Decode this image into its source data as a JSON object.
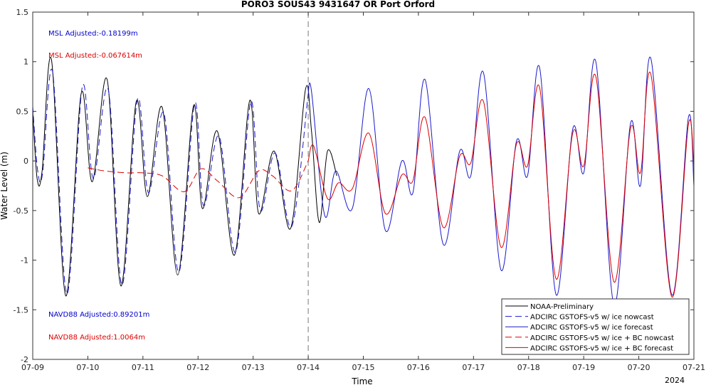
{
  "chart_data": {
    "type": "line",
    "title": "PORO3 SOUS43 9431647 OR Port Orford",
    "xlabel": "Time",
    "ylabel": "Water Level (m)",
    "xlim": [
      9,
      21
    ],
    "ylim": [
      -2,
      1.5
    ],
    "grid": false,
    "x_ticks": [
      {
        "v": 9,
        "label": "07-09"
      },
      {
        "v": 10,
        "label": "07-10"
      },
      {
        "v": 11,
        "label": "07-11"
      },
      {
        "v": 12,
        "label": "07-12"
      },
      {
        "v": 13,
        "label": "07-13"
      },
      {
        "v": 14,
        "label": "07-14"
      },
      {
        "v": 15,
        "label": "07-15"
      },
      {
        "v": 16,
        "label": "07-16"
      },
      {
        "v": 17,
        "label": "07-17"
      },
      {
        "v": 18,
        "label": "07-18"
      },
      {
        "v": 19,
        "label": "07-19"
      },
      {
        "v": 20,
        "label": "07-20"
      },
      {
        "v": 21,
        "label": "07-21"
      }
    ],
    "x_year_label": "2024",
    "y_ticks": [
      {
        "v": 1.5,
        "label": "1.5"
      },
      {
        "v": 1,
        "label": "1"
      },
      {
        "v": 0.5,
        "label": "0.5"
      },
      {
        "v": 0,
        "label": "0"
      },
      {
        "v": -0.5,
        "label": "-0.5"
      },
      {
        "v": -1,
        "label": "-1"
      },
      {
        "v": -1.5,
        "label": "-1.5"
      },
      {
        "v": -2,
        "label": "-2"
      }
    ],
    "nowcast_forecast_divider_x": 14,
    "annotations": [
      {
        "text": "MSL Adjusted:-0.18199m",
        "color": "#0000cc"
      },
      {
        "text": "MSL Adjusted:-0.067614m",
        "color": "#dd0000"
      },
      {
        "text": "NAVD88 Adjusted:0.89201m",
        "color": "#0000cc"
      },
      {
        "text": "NAVD88 Adjusted:1.0064m",
        "color": "#dd0000"
      }
    ],
    "legend_position": "bottom-right",
    "series": [
      {
        "name": "NOAA-Preliminary",
        "color": "#000000",
        "dash": "solid",
        "x": [
          9.0,
          9.08,
          9.17,
          9.34,
          9.6,
          9.88,
          10.08,
          10.35,
          10.6,
          10.88,
          11.08,
          11.35,
          11.63,
          11.92,
          12.08,
          12.35,
          12.66,
          12.94,
          13.1,
          13.38,
          13.68,
          13.95,
          14.06,
          14.2,
          14.35,
          14.52
        ],
        "y": [
          0.5,
          -0.18,
          -0.1,
          1.02,
          -1.36,
          0.68,
          -0.21,
          0.82,
          -1.26,
          0.6,
          -0.36,
          0.54,
          -1.15,
          0.56,
          -0.48,
          0.3,
          -0.95,
          0.61,
          -0.53,
          0.1,
          -0.68,
          0.72,
          0.3,
          -0.62,
          0.1,
          -0.15
        ]
      },
      {
        "name": "ADCIRC GSTOFS-v5 w/ ice nowcast",
        "color": "#1a1acc",
        "dash": "dashed",
        "x": [
          9.0,
          9.09,
          9.18,
          9.36,
          9.62,
          9.9,
          10.1,
          10.37,
          10.62,
          10.9,
          11.1,
          11.38,
          11.65,
          11.94,
          12.1,
          12.38,
          12.68,
          12.96,
          13.13,
          13.4,
          13.7,
          14.0
        ],
        "y": [
          0.55,
          -0.1,
          -0.12,
          0.9,
          -1.34,
          0.75,
          -0.18,
          0.72,
          -1.25,
          0.62,
          -0.32,
          0.48,
          -1.12,
          0.58,
          -0.45,
          0.25,
          -0.92,
          0.6,
          -0.5,
          0.08,
          -0.66,
          0.68
        ]
      },
      {
        "name": "ADCIRC GSTOFS-v5 w/ ice forecast",
        "color": "#1a1acc",
        "dash": "solid",
        "x": [
          14.0,
          14.06,
          14.3,
          14.5,
          14.8,
          15.1,
          15.4,
          15.7,
          15.9,
          16.12,
          16.45,
          16.75,
          16.95,
          17.18,
          17.5,
          17.78,
          17.98,
          18.2,
          18.5,
          18.8,
          19.0,
          19.22,
          19.55,
          19.85,
          20.03,
          20.22,
          20.6,
          20.9,
          21.0
        ],
        "y": [
          0.68,
          0.7,
          -0.55,
          -0.1,
          -0.48,
          0.73,
          -0.7,
          0.0,
          -0.32,
          0.82,
          -0.84,
          0.1,
          -0.15,
          0.89,
          -1.1,
          0.2,
          -0.15,
          0.94,
          -1.35,
          0.32,
          -0.12,
          1.0,
          -1.45,
          0.38,
          -0.25,
          1.03,
          -1.35,
          0.44,
          -0.25
        ]
      },
      {
        "name": "ADCIRC GSTOFS-v5 w/ ice + BC nowcast",
        "color": "#dd0000",
        "dash": "dashed",
        "x": [
          10.0,
          10.3,
          10.7,
          11.0,
          11.35,
          11.75,
          12.05,
          12.35,
          12.75,
          13.1,
          13.35,
          13.7,
          14.0
        ],
        "y": [
          -0.07,
          -0.1,
          -0.12,
          -0.12,
          -0.15,
          -0.31,
          -0.08,
          -0.2,
          -0.37,
          -0.1,
          -0.15,
          -0.3,
          0.0
        ]
      },
      {
        "name": "ADCIRC GSTOFS-v5 w/ ice + BC forecast",
        "color": "#dd0000",
        "dash": "solid",
        "x": [
          14.0,
          14.1,
          14.35,
          14.55,
          14.8,
          15.1,
          15.4,
          15.7,
          15.9,
          16.12,
          16.45,
          16.75,
          16.95,
          17.18,
          17.5,
          17.78,
          17.98,
          18.2,
          18.5,
          18.8,
          19.0,
          19.22,
          19.55,
          19.85,
          20.03,
          20.22,
          20.6,
          20.9,
          21.0
        ],
        "y": [
          0.0,
          0.15,
          -0.38,
          -0.22,
          -0.28,
          0.28,
          -0.53,
          -0.14,
          -0.2,
          0.44,
          -0.67,
          0.05,
          -0.02,
          0.6,
          -0.87,
          0.17,
          -0.05,
          0.74,
          -1.19,
          0.28,
          -0.05,
          0.85,
          -1.22,
          0.33,
          -0.12,
          0.87,
          -1.37,
          0.37,
          -0.08
        ]
      }
    ]
  }
}
